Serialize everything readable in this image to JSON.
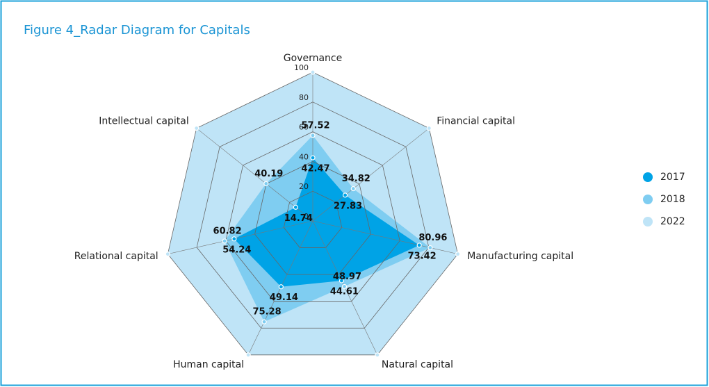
{
  "chart_data": {
    "type": "radar",
    "title": "Figure 4_Radar Diagram for Capitals",
    "categories": [
      "Governance",
      "Financial capital",
      "Manufacturing capital",
      "Natural capital",
      "Human capital",
      "Relational capital",
      "Intellectual capital"
    ],
    "series": [
      {
        "name": "2017",
        "color": "#00a3e6",
        "values": [
          42.47,
          27.83,
          73.42,
          44.61,
          49.14,
          54.24,
          14.74
        ]
      },
      {
        "name": "2018",
        "color": "#7fcdf1",
        "values": [
          57.52,
          34.82,
          80.96,
          48.97,
          75.28,
          60.82,
          40.19
        ]
      },
      {
        "name": "2022",
        "color": "#bfe4f7",
        "values": [
          100,
          100,
          100,
          100,
          100,
          100,
          100
        ]
      }
    ],
    "ylim": [
      0,
      100
    ],
    "yticks": [
      0,
      20,
      40,
      60,
      80,
      100
    ],
    "grid": true,
    "legend": "right"
  }
}
